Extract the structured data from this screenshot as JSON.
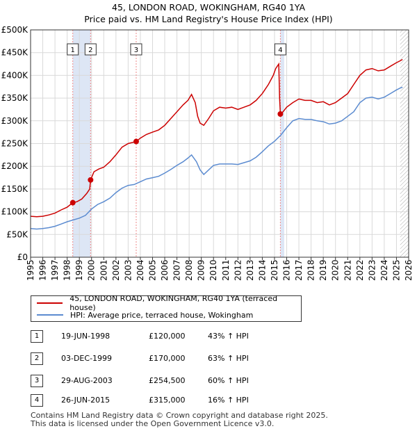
{
  "title_line1": "45, LONDON ROAD, WOKINGHAM, RG40 1YA",
  "title_line2": "Price paid vs. HM Land Registry's House Price Index (HPI)",
  "colors": {
    "property": "#cc0000",
    "hpi": "#5b8bd0",
    "marker": "#cc0000",
    "shade": "#dde6f5",
    "vline": "#e88",
    "grid": "#d9d9d9"
  },
  "chart_data": {
    "type": "line",
    "xlim": [
      1995,
      2026
    ],
    "ylim": [
      0,
      500000
    ],
    "x_ticks": [
      "1995",
      "1996",
      "1997",
      "1998",
      "1999",
      "2000",
      "2001",
      "2002",
      "2003",
      "2004",
      "2005",
      "2006",
      "2007",
      "2008",
      "2009",
      "2010",
      "2011",
      "2012",
      "2013",
      "2014",
      "2015",
      "2016",
      "2017",
      "2018",
      "2019",
      "2020",
      "2021",
      "2022",
      "2023",
      "2024",
      "2025",
      "2026"
    ],
    "y_ticks": [
      "£0",
      "£50K",
      "£100K",
      "£150K",
      "£200K",
      "£250K",
      "£300K",
      "£350K",
      "£400K",
      "£450K",
      "£500K"
    ],
    "y_tick_values": [
      0,
      50000,
      100000,
      150000,
      200000,
      250000,
      300000,
      350000,
      400000,
      450000,
      500000
    ],
    "shaded_ranges": [
      [
        1998.46,
        1999.92
      ],
      [
        2015.48,
        2015.8
      ]
    ],
    "hatched_from": 2025.3,
    "series": [
      {
        "name": "45, LONDON ROAD, WOKINGHAM, RG40 1YA (terraced house)",
        "color": "#cc0000",
        "points": [
          [
            1995.0,
            90000
          ],
          [
            1995.5,
            89000
          ],
          [
            1996.0,
            90000
          ],
          [
            1996.5,
            93000
          ],
          [
            1997.0,
            97000
          ],
          [
            1997.5,
            104000
          ],
          [
            1998.0,
            110000
          ],
          [
            1998.46,
            120000
          ],
          [
            1998.8,
            122000
          ],
          [
            1999.2,
            128000
          ],
          [
            1999.6,
            140000
          ],
          [
            1999.85,
            150000
          ],
          [
            1999.92,
            170000
          ],
          [
            2000.2,
            188000
          ],
          [
            2000.6,
            194000
          ],
          [
            2001.0,
            198000
          ],
          [
            2001.5,
            210000
          ],
          [
            2002.0,
            225000
          ],
          [
            2002.5,
            242000
          ],
          [
            2003.0,
            250000
          ],
          [
            2003.66,
            254500
          ],
          [
            2004.0,
            262000
          ],
          [
            2004.5,
            270000
          ],
          [
            2005.0,
            275000
          ],
          [
            2005.5,
            280000
          ],
          [
            2006.0,
            290000
          ],
          [
            2006.5,
            305000
          ],
          [
            2007.0,
            320000
          ],
          [
            2007.5,
            335000
          ],
          [
            2007.9,
            345000
          ],
          [
            2008.2,
            358000
          ],
          [
            2008.5,
            340000
          ],
          [
            2008.7,
            310000
          ],
          [
            2008.9,
            295000
          ],
          [
            2009.2,
            290000
          ],
          [
            2009.6,
            305000
          ],
          [
            2010.0,
            322000
          ],
          [
            2010.5,
            330000
          ],
          [
            2011.0,
            328000
          ],
          [
            2011.5,
            330000
          ],
          [
            2012.0,
            325000
          ],
          [
            2012.5,
            330000
          ],
          [
            2013.0,
            335000
          ],
          [
            2013.5,
            345000
          ],
          [
            2014.0,
            360000
          ],
          [
            2014.5,
            380000
          ],
          [
            2014.9,
            400000
          ],
          [
            2015.1,
            415000
          ],
          [
            2015.35,
            425000
          ],
          [
            2015.42,
            350000
          ],
          [
            2015.48,
            315000
          ],
          [
            2015.7,
            320000
          ],
          [
            2016.0,
            330000
          ],
          [
            2016.5,
            340000
          ],
          [
            2017.0,
            348000
          ],
          [
            2017.5,
            345000
          ],
          [
            2018.0,
            345000
          ],
          [
            2018.5,
            340000
          ],
          [
            2019.0,
            342000
          ],
          [
            2019.5,
            335000
          ],
          [
            2020.0,
            340000
          ],
          [
            2020.5,
            350000
          ],
          [
            2021.0,
            360000
          ],
          [
            2021.5,
            380000
          ],
          [
            2022.0,
            400000
          ],
          [
            2022.5,
            412000
          ],
          [
            2023.0,
            415000
          ],
          [
            2023.5,
            410000
          ],
          [
            2024.0,
            412000
          ],
          [
            2024.5,
            420000
          ],
          [
            2025.0,
            428000
          ],
          [
            2025.3,
            432000
          ],
          [
            2025.5,
            435000
          ]
        ]
      },
      {
        "name": "HPI: Average price, terraced house, Wokingham",
        "color": "#5b8bd0",
        "points": [
          [
            1995.0,
            63000
          ],
          [
            1995.5,
            62000
          ],
          [
            1996.0,
            63000
          ],
          [
            1996.5,
            65000
          ],
          [
            1997.0,
            68000
          ],
          [
            1997.5,
            73000
          ],
          [
            1998.0,
            78000
          ],
          [
            1998.5,
            82000
          ],
          [
            1999.0,
            86000
          ],
          [
            1999.5,
            92000
          ],
          [
            2000.0,
            106000
          ],
          [
            2000.5,
            116000
          ],
          [
            2001.0,
            122000
          ],
          [
            2001.5,
            130000
          ],
          [
            2002.0,
            142000
          ],
          [
            2002.5,
            152000
          ],
          [
            2003.0,
            158000
          ],
          [
            2003.5,
            160000
          ],
          [
            2004.0,
            166000
          ],
          [
            2004.5,
            172000
          ],
          [
            2005.0,
            175000
          ],
          [
            2005.5,
            178000
          ],
          [
            2006.0,
            185000
          ],
          [
            2006.5,
            193000
          ],
          [
            2007.0,
            202000
          ],
          [
            2007.5,
            210000
          ],
          [
            2007.9,
            218000
          ],
          [
            2008.2,
            225000
          ],
          [
            2008.6,
            210000
          ],
          [
            2008.9,
            192000
          ],
          [
            2009.2,
            182000
          ],
          [
            2009.6,
            192000
          ],
          [
            2010.0,
            202000
          ],
          [
            2010.5,
            205000
          ],
          [
            2011.0,
            205000
          ],
          [
            2011.5,
            205000
          ],
          [
            2012.0,
            204000
          ],
          [
            2012.5,
            208000
          ],
          [
            2013.0,
            212000
          ],
          [
            2013.5,
            220000
          ],
          [
            2014.0,
            232000
          ],
          [
            2014.5,
            245000
          ],
          [
            2015.0,
            255000
          ],
          [
            2015.5,
            268000
          ],
          [
            2016.0,
            285000
          ],
          [
            2016.5,
            300000
          ],
          [
            2017.0,
            305000
          ],
          [
            2017.5,
            303000
          ],
          [
            2018.0,
            303000
          ],
          [
            2018.5,
            300000
          ],
          [
            2019.0,
            298000
          ],
          [
            2019.5,
            293000
          ],
          [
            2020.0,
            295000
          ],
          [
            2020.5,
            300000
          ],
          [
            2021.0,
            310000
          ],
          [
            2021.5,
            320000
          ],
          [
            2022.0,
            340000
          ],
          [
            2022.5,
            350000
          ],
          [
            2023.0,
            352000
          ],
          [
            2023.5,
            348000
          ],
          [
            2024.0,
            352000
          ],
          [
            2024.5,
            360000
          ],
          [
            2025.0,
            368000
          ],
          [
            2025.3,
            372000
          ],
          [
            2025.5,
            374000
          ]
        ]
      }
    ],
    "sales": [
      {
        "id": "1",
        "x": 1998.46,
        "y": 120000
      },
      {
        "id": "2",
        "x": 1999.92,
        "y": 170000
      },
      {
        "id": "3",
        "x": 2003.66,
        "y": 254500
      },
      {
        "id": "4",
        "x": 2015.48,
        "y": 315000
      }
    ]
  },
  "legend": {
    "property": "45, LONDON ROAD, WOKINGHAM, RG40 1YA (terraced house)",
    "hpi": "HPI: Average price, terraced house, Wokingham"
  },
  "transactions": [
    {
      "num": "1",
      "date": "19-JUN-1998",
      "price": "£120,000",
      "change": "43% ↑ HPI"
    },
    {
      "num": "2",
      "date": "03-DEC-1999",
      "price": "£170,000",
      "change": "63% ↑ HPI"
    },
    {
      "num": "3",
      "date": "29-AUG-2003",
      "price": "£254,500",
      "change": "60% ↑ HPI"
    },
    {
      "num": "4",
      "date": "26-JUN-2015",
      "price": "£315,000",
      "change": "16% ↑ HPI"
    }
  ],
  "footer_line1": "Contains HM Land Registry data © Crown copyright and database right 2025.",
  "footer_line2": "This data is licensed under the Open Government Licence v3.0."
}
